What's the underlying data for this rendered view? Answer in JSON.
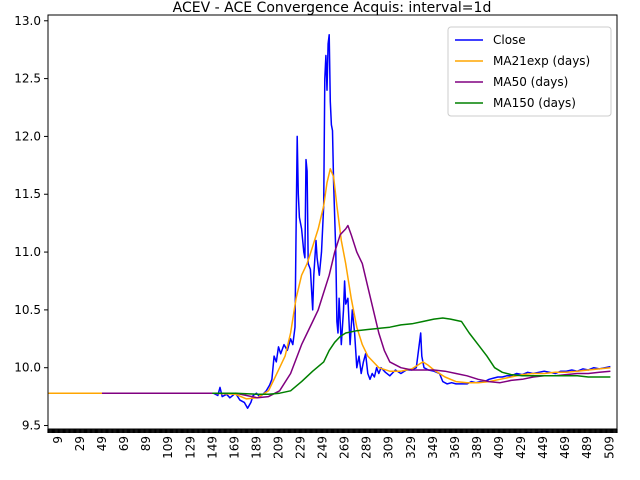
{
  "chart_data": {
    "type": "line",
    "title": "ACEV - ACE Convergence Acquis: interval=1d",
    "xlabel": "",
    "ylabel": "",
    "xlim": [
      0,
      516
    ],
    "ylim": [
      9.47,
      13.05
    ],
    "xticks": [
      9,
      29,
      49,
      69,
      89,
      109,
      129,
      149,
      169,
      189,
      209,
      229,
      249,
      269,
      289,
      309,
      329,
      349,
      369,
      389,
      409,
      429,
      449,
      469,
      489,
      509
    ],
    "yticks": [
      9.5,
      10.0,
      10.5,
      11.0,
      11.5,
      12.0,
      12.5,
      13.0
    ],
    "ytick_labels": [
      "9.5",
      "10.0",
      "10.5",
      "11.0",
      "11.5",
      "12.0",
      "12.5",
      "13.0"
    ],
    "grid": false,
    "legend_position": "top-right",
    "series": [
      {
        "name": "Close",
        "color": "#0000ff",
        "points": [
          [
            150,
            9.78
          ],
          [
            154,
            9.76
          ],
          [
            156,
            9.83
          ],
          [
            158,
            9.75
          ],
          [
            162,
            9.77
          ],
          [
            165,
            9.74
          ],
          [
            170,
            9.78
          ],
          [
            174,
            9.72
          ],
          [
            178,
            9.7
          ],
          [
            181,
            9.65
          ],
          [
            184,
            9.7
          ],
          [
            186,
            9.76
          ],
          [
            189,
            9.78
          ],
          [
            192,
            9.75
          ],
          [
            195,
            9.77
          ],
          [
            198,
            9.8
          ],
          [
            201,
            9.85
          ],
          [
            203,
            9.9
          ],
          [
            205,
            10.1
          ],
          [
            207,
            10.05
          ],
          [
            209,
            10.18
          ],
          [
            211,
            10.12
          ],
          [
            214,
            10.2
          ],
          [
            217,
            10.15
          ],
          [
            220,
            10.25
          ],
          [
            222,
            10.2
          ],
          [
            224,
            10.35
          ],
          [
            225,
            11.2
          ],
          [
            226,
            12.0
          ],
          [
            227,
            11.5
          ],
          [
            228,
            11.3
          ],
          [
            230,
            11.2
          ],
          [
            232,
            11.0
          ],
          [
            233,
            10.95
          ],
          [
            234,
            11.8
          ],
          [
            235,
            11.7
          ],
          [
            236,
            10.9
          ],
          [
            238,
            10.85
          ],
          [
            240,
            10.5
          ],
          [
            241,
            10.8
          ],
          [
            243,
            11.1
          ],
          [
            244,
            10.95
          ],
          [
            246,
            10.8
          ],
          [
            248,
            11.0
          ],
          [
            250,
            11.4
          ],
          [
            251,
            12.5
          ],
          [
            252,
            12.7
          ],
          [
            253,
            12.4
          ],
          [
            254,
            12.8
          ],
          [
            255,
            12.88
          ],
          [
            256,
            12.3
          ],
          [
            257,
            12.1
          ],
          [
            258,
            12.05
          ],
          [
            259,
            11.6
          ],
          [
            261,
            11.0
          ],
          [
            262,
            10.4
          ],
          [
            263,
            10.3
          ],
          [
            264,
            10.6
          ],
          [
            265,
            10.4
          ],
          [
            266,
            10.2
          ],
          [
            268,
            10.5
          ],
          [
            269,
            10.75
          ],
          [
            270,
            10.55
          ],
          [
            272,
            10.6
          ],
          [
            274,
            10.2
          ],
          [
            276,
            10.5
          ],
          [
            278,
            10.3
          ],
          [
            280,
            10.0
          ],
          [
            282,
            10.1
          ],
          [
            284,
            9.95
          ],
          [
            286,
            10.05
          ],
          [
            288,
            10.12
          ],
          [
            290,
            9.95
          ],
          [
            292,
            9.9
          ],
          [
            294,
            9.95
          ],
          [
            296,
            9.92
          ],
          [
            298,
            10.0
          ],
          [
            300,
            9.95
          ],
          [
            302,
            10.0
          ],
          [
            306,
            9.96
          ],
          [
            310,
            9.93
          ],
          [
            315,
            9.98
          ],
          [
            320,
            9.95
          ],
          [
            325,
            9.98
          ],
          [
            330,
            9.98
          ],
          [
            334,
            10.0
          ],
          [
            336,
            10.15
          ],
          [
            338,
            10.3
          ],
          [
            339,
            10.1
          ],
          [
            341,
            10.0
          ],
          [
            345,
            9.98
          ],
          [
            350,
            9.97
          ],
          [
            355,
            9.95
          ],
          [
            358,
            9.88
          ],
          [
            362,
            9.86
          ],
          [
            366,
            9.87
          ],
          [
            370,
            9.86
          ],
          [
            375,
            9.86
          ],
          [
            380,
            9.86
          ],
          [
            384,
            9.88
          ],
          [
            388,
            9.87
          ],
          [
            392,
            9.88
          ],
          [
            396,
            9.88
          ],
          [
            400,
            9.9
          ],
          [
            404,
            9.91
          ],
          [
            408,
            9.92
          ],
          [
            412,
            9.92
          ],
          [
            416,
            9.93
          ],
          [
            420,
            9.93
          ],
          [
            425,
            9.95
          ],
          [
            430,
            9.94
          ],
          [
            435,
            9.96
          ],
          [
            440,
            9.95
          ],
          [
            445,
            9.96
          ],
          [
            450,
            9.97
          ],
          [
            455,
            9.96
          ],
          [
            460,
            9.95
          ],
          [
            465,
            9.97
          ],
          [
            470,
            9.97
          ],
          [
            475,
            9.98
          ],
          [
            480,
            9.97
          ],
          [
            485,
            9.99
          ],
          [
            490,
            9.98
          ],
          [
            495,
            10.0
          ],
          [
            500,
            9.99
          ],
          [
            505,
            10.0
          ],
          [
            510,
            10.01
          ]
        ]
      },
      {
        "name": "MA21exp (days)",
        "color": "#ffa500",
        "points": [
          [
            0,
            9.78
          ],
          [
            150,
            9.78
          ],
          [
            170,
            9.77
          ],
          [
            180,
            9.73
          ],
          [
            190,
            9.74
          ],
          [
            200,
            9.8
          ],
          [
            205,
            9.9
          ],
          [
            210,
            10.0
          ],
          [
            215,
            10.1
          ],
          [
            220,
            10.3
          ],
          [
            225,
            10.6
          ],
          [
            230,
            10.8
          ],
          [
            235,
            10.9
          ],
          [
            240,
            11.05
          ],
          [
            245,
            11.2
          ],
          [
            250,
            11.4
          ],
          [
            253,
            11.6
          ],
          [
            256,
            11.72
          ],
          [
            259,
            11.65
          ],
          [
            262,
            11.4
          ],
          [
            266,
            11.1
          ],
          [
            270,
            10.9
          ],
          [
            275,
            10.6
          ],
          [
            280,
            10.35
          ],
          [
            285,
            10.2
          ],
          [
            290,
            10.1
          ],
          [
            295,
            10.05
          ],
          [
            300,
            10.0
          ],
          [
            310,
            9.97
          ],
          [
            320,
            9.97
          ],
          [
            330,
            9.99
          ],
          [
            340,
            10.05
          ],
          [
            345,
            10.02
          ],
          [
            350,
            9.98
          ],
          [
            360,
            9.92
          ],
          [
            370,
            9.88
          ],
          [
            380,
            9.87
          ],
          [
            390,
            9.87
          ],
          [
            400,
            9.88
          ],
          [
            410,
            9.9
          ],
          [
            420,
            9.92
          ],
          [
            430,
            9.94
          ],
          [
            440,
            9.95
          ],
          [
            450,
            9.95
          ],
          [
            460,
            9.96
          ],
          [
            470,
            9.96
          ],
          [
            480,
            9.97
          ],
          [
            490,
            9.98
          ],
          [
            500,
            9.99
          ],
          [
            510,
            10.0
          ]
        ]
      },
      {
        "name": "MA50 (days)",
        "color": "#800080",
        "points": [
          [
            49,
            9.78
          ],
          [
            150,
            9.78
          ],
          [
            170,
            9.78
          ],
          [
            180,
            9.76
          ],
          [
            190,
            9.74
          ],
          [
            200,
            9.75
          ],
          [
            210,
            9.8
          ],
          [
            220,
            9.95
          ],
          [
            230,
            10.2
          ],
          [
            240,
            10.4
          ],
          [
            245,
            10.5
          ],
          [
            250,
            10.65
          ],
          [
            255,
            10.8
          ],
          [
            260,
            11.0
          ],
          [
            265,
            11.15
          ],
          [
            270,
            11.2
          ],
          [
            272,
            11.23
          ],
          [
            275,
            11.15
          ],
          [
            280,
            11.0
          ],
          [
            285,
            10.9
          ],
          [
            290,
            10.7
          ],
          [
            295,
            10.5
          ],
          [
            300,
            10.3
          ],
          [
            305,
            10.15
          ],
          [
            310,
            10.05
          ],
          [
            320,
            10.0
          ],
          [
            330,
            9.98
          ],
          [
            340,
            9.98
          ],
          [
            350,
            9.98
          ],
          [
            360,
            9.97
          ],
          [
            370,
            9.95
          ],
          [
            380,
            9.93
          ],
          [
            390,
            9.9
          ],
          [
            400,
            9.88
          ],
          [
            410,
            9.87
          ],
          [
            420,
            9.89
          ],
          [
            430,
            9.9
          ],
          [
            440,
            9.92
          ],
          [
            450,
            9.93
          ],
          [
            460,
            9.93
          ],
          [
            470,
            9.94
          ],
          [
            480,
            9.95
          ],
          [
            490,
            9.95
          ],
          [
            500,
            9.96
          ],
          [
            510,
            9.97
          ]
        ]
      },
      {
        "name": "MA150 (days)",
        "color": "#008000",
        "points": [
          [
            149,
            9.78
          ],
          [
            170,
            9.78
          ],
          [
            190,
            9.77
          ],
          [
            200,
            9.77
          ],
          [
            210,
            9.78
          ],
          [
            220,
            9.8
          ],
          [
            230,
            9.88
          ],
          [
            240,
            9.97
          ],
          [
            250,
            10.05
          ],
          [
            255,
            10.15
          ],
          [
            260,
            10.22
          ],
          [
            265,
            10.27
          ],
          [
            270,
            10.3
          ],
          [
            280,
            10.32
          ],
          [
            290,
            10.33
          ],
          [
            300,
            10.34
          ],
          [
            310,
            10.35
          ],
          [
            320,
            10.37
          ],
          [
            330,
            10.38
          ],
          [
            340,
            10.4
          ],
          [
            350,
            10.42
          ],
          [
            358,
            10.43
          ],
          [
            365,
            10.42
          ],
          [
            375,
            10.4
          ],
          [
            382,
            10.3
          ],
          [
            390,
            10.2
          ],
          [
            398,
            10.1
          ],
          [
            405,
            10.0
          ],
          [
            412,
            9.96
          ],
          [
            420,
            9.94
          ],
          [
            430,
            9.93
          ],
          [
            440,
            9.93
          ],
          [
            450,
            9.93
          ],
          [
            460,
            9.93
          ],
          [
            470,
            9.93
          ],
          [
            480,
            9.93
          ],
          [
            490,
            9.92
          ],
          [
            500,
            9.92
          ],
          [
            510,
            9.92
          ]
        ]
      }
    ]
  }
}
